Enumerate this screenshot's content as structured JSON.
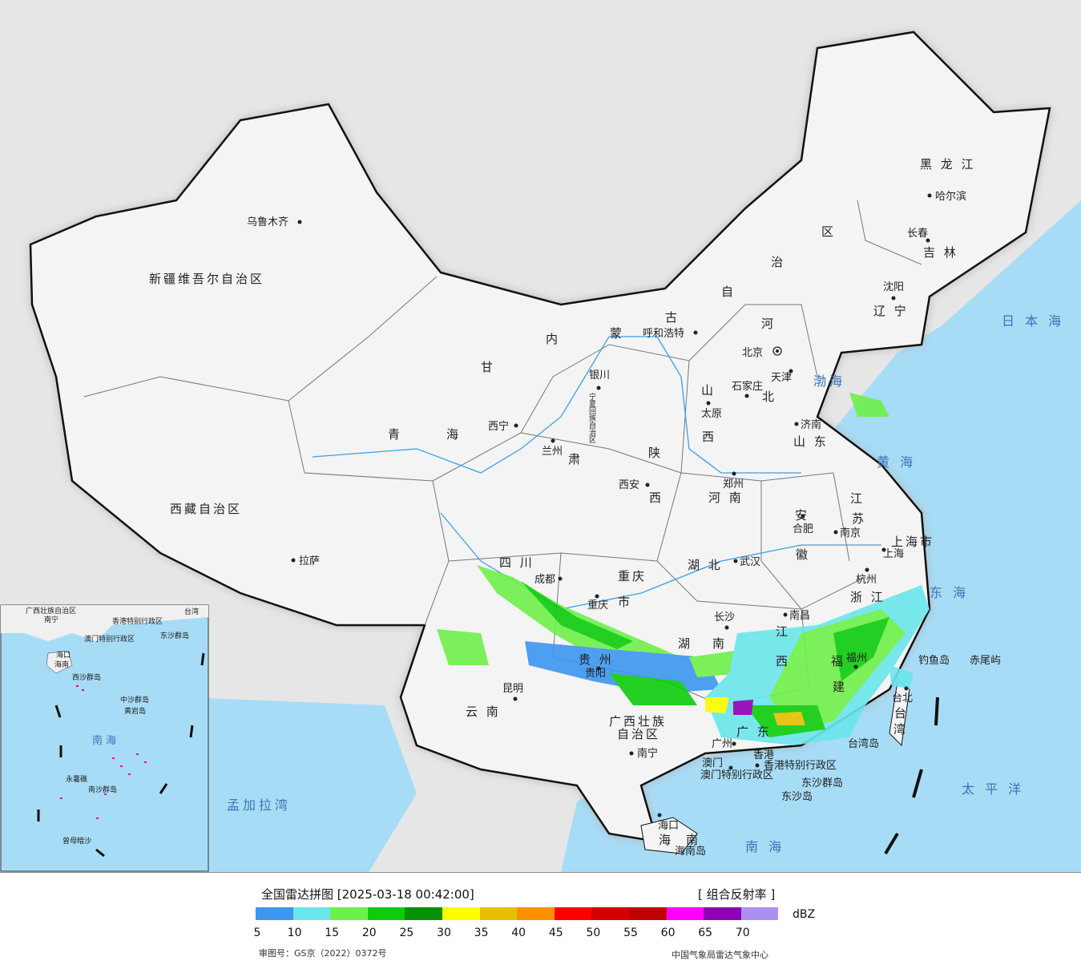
{
  "map": {
    "cities": [
      {
        "name": "乌鲁木齐"
      },
      {
        "name": "拉萨"
      },
      {
        "name": "西宁"
      },
      {
        "name": "兰州"
      },
      {
        "name": "银川"
      },
      {
        "name": "呼和浩特"
      },
      {
        "name": "北京"
      },
      {
        "name": "天津"
      },
      {
        "name": "石家庄"
      },
      {
        "name": "太原"
      },
      {
        "name": "济南"
      },
      {
        "name": "郑州"
      },
      {
        "name": "西安"
      },
      {
        "name": "成都"
      },
      {
        "name": "重庆"
      },
      {
        "name": "武汉"
      },
      {
        "name": "长沙"
      },
      {
        "name": "南昌"
      },
      {
        "name": "合肥"
      },
      {
        "name": "南京"
      },
      {
        "name": "上海"
      },
      {
        "name": "杭州"
      },
      {
        "name": "福州"
      },
      {
        "name": "台北"
      },
      {
        "name": "贵阳"
      },
      {
        "name": "昆明"
      },
      {
        "name": "南宁"
      },
      {
        "name": "广州"
      },
      {
        "name": "香港"
      },
      {
        "name": "澳门"
      },
      {
        "name": "海口"
      },
      {
        "name": "沈阳"
      },
      {
        "name": "长春"
      },
      {
        "name": "哈尔滨"
      }
    ],
    "provinces": [
      "新疆维吾尔自治区",
      "西藏自治区",
      "青",
      "海",
      "甘",
      "肃",
      "宁夏回族自治区",
      "内",
      "蒙",
      "古",
      "自",
      "治",
      "区",
      "黑 龙 江",
      "吉 林",
      "辽 宁",
      "河",
      "北",
      "山",
      "西",
      "山 东",
      "陕",
      "西",
      "河 南",
      "江",
      "苏",
      "安",
      "徽",
      "上海市",
      "浙 江",
      "四 川",
      "重庆",
      "市",
      "湖 北",
      "湖",
      "南",
      "江",
      "西",
      "福",
      "建",
      "贵 州",
      "云 南",
      "广西壮族",
      "自治区",
      "广 东",
      "海",
      "南",
      "台",
      "湾",
      "香港特别行政区",
      "澳门特别行政区"
    ],
    "seas": [
      "渤海",
      "黄 海",
      "东 海",
      "日 本 海",
      "太 平 洋",
      "南 海",
      "孟加拉湾"
    ],
    "islands": [
      "钓鱼岛",
      "赤尾屿",
      "台湾岛",
      "东沙群岛",
      "东沙岛",
      "海南岛"
    ],
    "inset": {
      "labels": [
        "广西壮族自治区",
        "南宁",
        "香港特别行政区",
        "澳门特别行政区",
        "东沙群岛",
        "海口",
        "海南",
        "西沙群岛",
        "中沙群岛",
        "黄岩岛",
        "南海",
        "永暑礁",
        "南沙群岛",
        "曾母暗沙",
        "台湾"
      ]
    }
  },
  "legend": {
    "title": "全国雷达拼图 [2025-03-18 00:42:00]",
    "label": "[ 组合反射率 ]",
    "unit": "dBZ",
    "colors": [
      "#3d96f0",
      "#6ae6ec",
      "#6ef04a",
      "#0ccc0c",
      "#089008",
      "#fcfc00",
      "#e6c000",
      "#fc9000",
      "#fc0000",
      "#d40000",
      "#c00000",
      "#fc00fc",
      "#9000b4",
      "#ac90f0"
    ],
    "ticks": [
      "5",
      "10",
      "15",
      "20",
      "25",
      "30",
      "35",
      "40",
      "45",
      "50",
      "55",
      "60",
      "65",
      "70"
    ],
    "approval": "审图号：GS京（2022）0372号",
    "source": "中国气象局雷达气象中心"
  }
}
